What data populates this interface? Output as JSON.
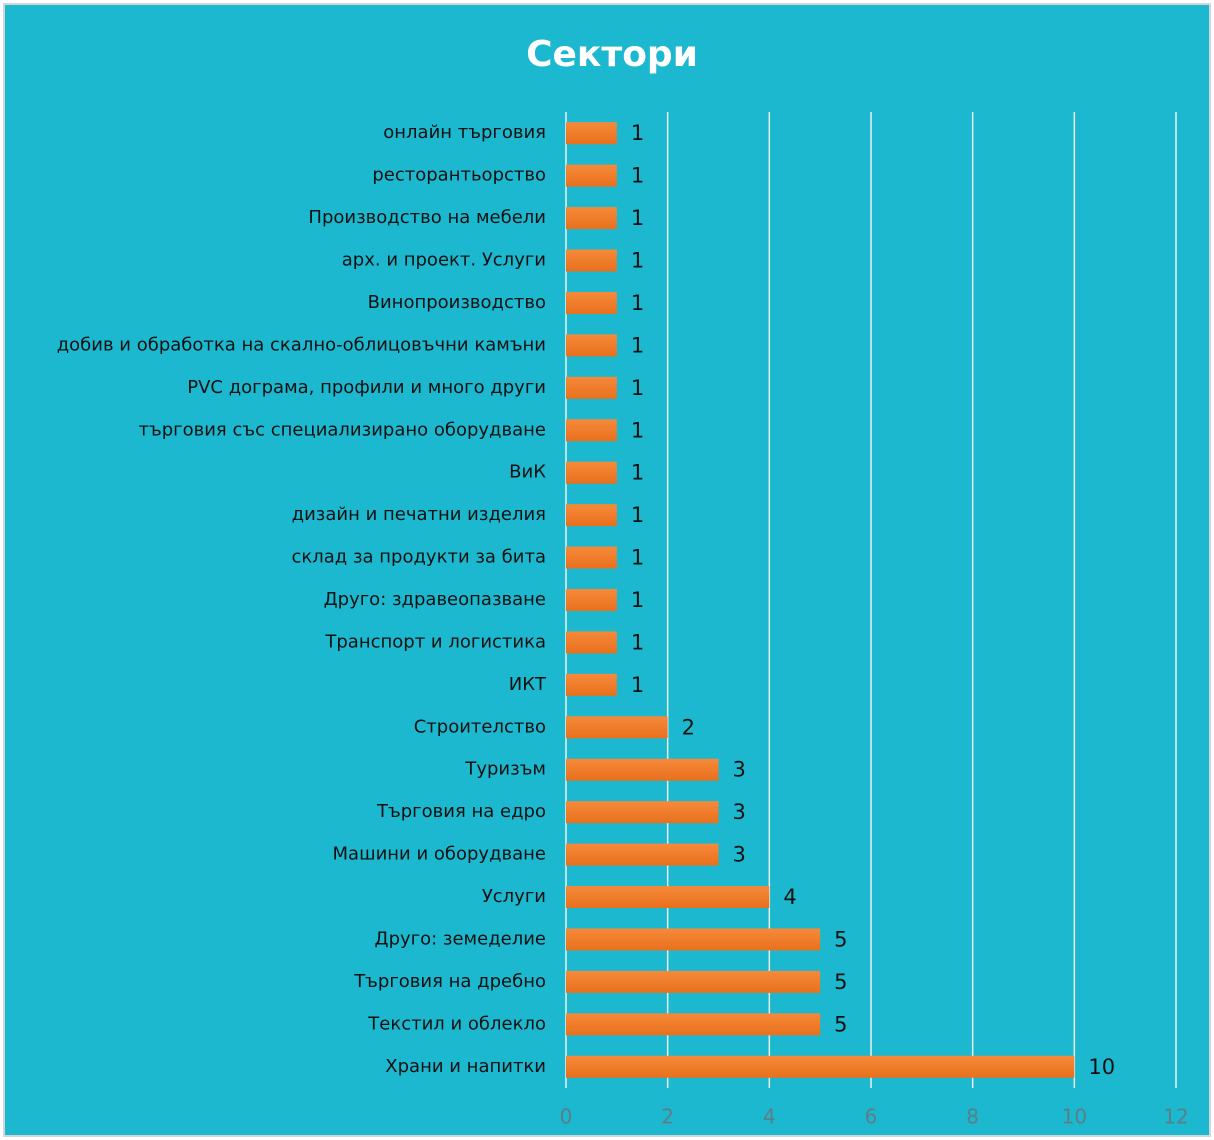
{
  "chart_data": {
    "type": "barh",
    "title": "Сектори",
    "categories": [
      "онлайн търговия",
      "ресторантьорство",
      "Производство на мебели",
      "арх. и проект. Услуги",
      "Винопроизводство",
      "добив и обработка на скално-облицовъчни камъни",
      "PVC дограма, профили и много други",
      "търговия със специализирано оборудване",
      "ВиК",
      "дизайн и печатни изделия",
      "склад за продукти за бита",
      "Друго: здравеопазване",
      "Транспорт и логистика",
      "ИКТ",
      "Строителство",
      "Туризъм",
      "Търговия на едро",
      "Машини и оборудване",
      "Услуги",
      "Друго: земеделие",
      "Търговия на дребно",
      "Текстил и облекло",
      "Храни и напитки"
    ],
    "values": [
      1,
      1,
      1,
      1,
      1,
      1,
      1,
      1,
      1,
      1,
      1,
      1,
      1,
      1,
      2,
      3,
      3,
      3,
      4,
      5,
      5,
      5,
      10
    ],
    "color": "#f07f2c",
    "xlim": [
      0,
      12
    ],
    "xticks": [
      0,
      2,
      4,
      6,
      8,
      10,
      12
    ],
    "grid": true
  }
}
